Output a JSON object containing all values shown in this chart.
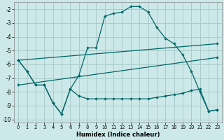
{
  "xlabel": "Humidex (Indice chaleur)",
  "background_color": "#cce8e8",
  "grid_color": "#aacccc",
  "line_color": "#006666",
  "xlim": [
    -0.5,
    23.5
  ],
  "ylim": [
    -10.2,
    -1.5
  ],
  "yticks": [
    -10,
    -9,
    -8,
    -7,
    -6,
    -5,
    -4,
    -3,
    -2
  ],
  "xticks": [
    0,
    1,
    2,
    3,
    4,
    5,
    6,
    7,
    8,
    9,
    10,
    11,
    12,
    13,
    14,
    15,
    16,
    17,
    18,
    19,
    20,
    21,
    22,
    23
  ],
  "line1_x": [
    0,
    1,
    2,
    3,
    4,
    5,
    6,
    7,
    8,
    9,
    10,
    11,
    12,
    13,
    14,
    15,
    16,
    17,
    18,
    19,
    20,
    21,
    22,
    23
  ],
  "line1_y": [
    -5.7,
    -6.5,
    -7.5,
    -7.5,
    -8.8,
    -9.6,
    -7.8,
    -6.8,
    -4.8,
    -4.8,
    -2.5,
    -2.3,
    -2.2,
    -1.8,
    -1.8,
    -2.2,
    -3.3,
    -4.1,
    -4.5,
    -5.3,
    -6.5,
    -8.0,
    -9.4,
    -9.3
  ],
  "line2_x": [
    0,
    1,
    2,
    3,
    4,
    5,
    6,
    7,
    8,
    9,
    10,
    11,
    12,
    13,
    14,
    15,
    16,
    17,
    18,
    19,
    20,
    21,
    22,
    23
  ],
  "line2_y": [
    -5.7,
    -6.5,
    -7.5,
    -7.5,
    -8.8,
    -9.6,
    -7.8,
    -8.3,
    -8.5,
    -8.5,
    -8.5,
    -8.5,
    -8.5,
    -8.5,
    -8.5,
    -8.5,
    -8.4,
    -8.3,
    -8.2,
    -8.1,
    -7.9,
    -7.8,
    -9.4,
    -9.3
  ],
  "line3_x": [
    0,
    23
  ],
  "line3_y": [
    -5.7,
    -4.5
  ],
  "line4_x": [
    0,
    23
  ],
  "line4_y": [
    -7.5,
    -5.5
  ]
}
